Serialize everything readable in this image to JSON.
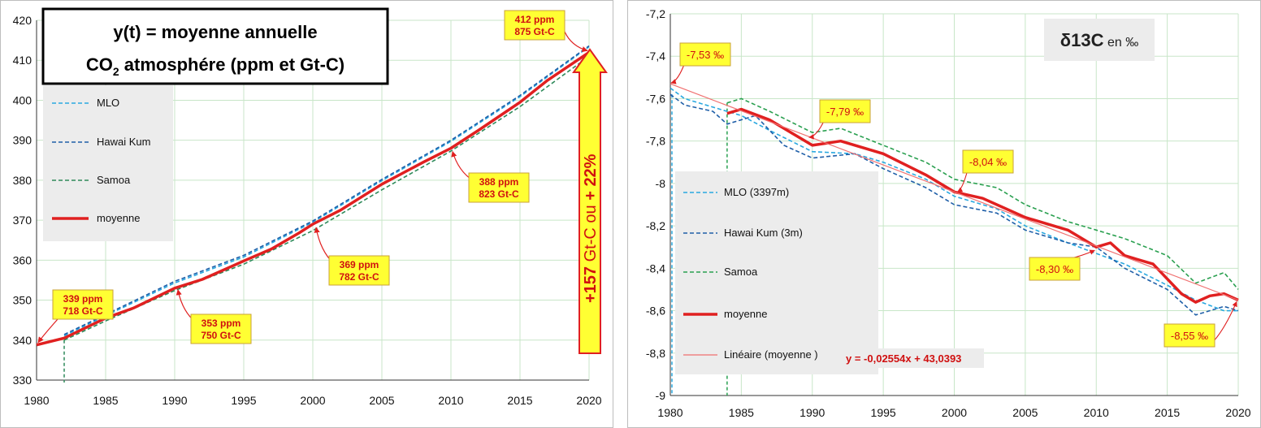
{
  "chart_data": [
    {
      "type": "line",
      "title_lines": [
        "y(t) = moyenne annuelle",
        "CO",
        "2",
        " atmosphére (ppm et Gt-C)"
      ],
      "xlabel": "",
      "ylabel": "",
      "xlim": [
        1980,
        2020
      ],
      "ylim": [
        330,
        420
      ],
      "xticks": [
        "1980",
        "1985",
        "1990",
        "1995",
        "2000",
        "2005",
        "2010",
        "2015",
        "2020"
      ],
      "yticks": [
        "330",
        "340",
        "350",
        "360",
        "370",
        "380",
        "390",
        "400",
        "410",
        "420"
      ],
      "grid": true,
      "legend_position": "left",
      "series": [
        {
          "name": "MLO",
          "color": "#29a8e0",
          "style": "dashed",
          "x": [
            1982,
            1985,
            1990,
            1995,
            2000,
            2005,
            2010,
            2015,
            2020
          ],
          "y": [
            341.1,
            346.1,
            354.3,
            360.8,
            369.5,
            379.9,
            389.7,
            400.9,
            413.4
          ]
        },
        {
          "name": "Hawai Kum",
          "color": "#1f5fa8",
          "style": "dashed",
          "x": [
            1982,
            1985,
            1990,
            1995,
            2000,
            2005,
            2010,
            2015,
            2020
          ],
          "y": [
            341.4,
            346.4,
            354.7,
            361.2,
            369.8,
            380.2,
            390.0,
            401.2,
            413.6
          ]
        },
        {
          "name": "Samoa",
          "color": "#2e8a5a",
          "style": "dashed",
          "x": [
            1982,
            1985,
            1990,
            1995,
            2000,
            2005,
            2010,
            2015,
            2020
          ],
          "y": [
            340.0,
            344.8,
            352.4,
            359.0,
            367.4,
            377.6,
            387.3,
            398.4,
            411.0
          ]
        },
        {
          "name": "moyenne",
          "color": "#e02020",
          "style": "solid",
          "x": [
            1980,
            1982,
            1985,
            1987,
            1990,
            1992,
            1995,
            1997,
            1999,
            2000,
            2002,
            2005,
            2008,
            2010,
            2012,
            2015,
            2017,
            2020
          ],
          "y": [
            338.8,
            340.5,
            345.5,
            348.0,
            353.0,
            355.2,
            359.8,
            362.8,
            366.8,
            369.0,
            372.5,
            379.0,
            384.5,
            388.0,
            392.5,
            399.5,
            405.0,
            412.0
          ]
        }
      ],
      "annotations": [
        {
          "lines": [
            "339 ppm",
            "718 Gt-C"
          ],
          "x": 1980,
          "y": 339
        },
        {
          "lines": [
            "353 ppm",
            "750 Gt-C"
          ],
          "x": 1990,
          "y": 353
        },
        {
          "lines": [
            "369 ppm",
            "782 Gt-C"
          ],
          "x": 2000,
          "y": 369
        },
        {
          "lines": [
            "388 ppm",
            "823 Gt-C"
          ],
          "x": 2010,
          "y": 388
        },
        {
          "lines": [
            "412 ppm",
            "875 Gt-C"
          ],
          "x": 2020,
          "y": 412
        }
      ],
      "arrow_label_parts": [
        "+157",
        " Gt-C ou ",
        "+ 22%"
      ]
    },
    {
      "type": "line",
      "title_parts": [
        "δ13C",
        " en ‰"
      ],
      "xlabel": "",
      "ylabel": "",
      "xlim": [
        1980,
        2020
      ],
      "ylim": [
        -9,
        -7.2
      ],
      "xticks": [
        "1980",
        "1985",
        "1990",
        "1995",
        "2000",
        "2005",
        "2010",
        "2015",
        "2020"
      ],
      "yticks": [
        "-9",
        "-8,8",
        "-8,6",
        "-8,4",
        "-8,2",
        "-8",
        "-7,8",
        "-7,6",
        "-7,4",
        "-7,2"
      ],
      "grid": true,
      "legend_position": "left",
      "series": [
        {
          "name": "MLO (3397m)",
          "color": "#29a8e0",
          "style": "dashed",
          "x": [
            1980,
            1981,
            1983,
            1985,
            1987,
            1990,
            1993,
            1995,
            1998,
            2000,
            2003,
            2005,
            2008,
            2010,
            2012,
            2015,
            2017,
            2019,
            2020
          ],
          "y": [
            -7.55,
            -7.6,
            -7.64,
            -7.68,
            -7.75,
            -7.85,
            -7.86,
            -7.9,
            -7.98,
            -8.06,
            -8.12,
            -8.2,
            -8.28,
            -8.33,
            -8.38,
            -8.48,
            -8.55,
            -8.6,
            -8.6
          ]
        },
        {
          "name": "Hawai Kum (3m)",
          "color": "#1f5fa8",
          "style": "dashed",
          "x": [
            1980,
            1981,
            1983,
            1984,
            1986,
            1988,
            1990,
            1993,
            1995,
            1998,
            2000,
            2003,
            2005,
            2008,
            2010,
            2012,
            2015,
            2017,
            2019,
            2020
          ],
          "y": [
            -7.58,
            -7.63,
            -7.66,
            -7.72,
            -7.68,
            -7.82,
            -7.88,
            -7.86,
            -7.93,
            -8.02,
            -8.1,
            -8.14,
            -8.22,
            -8.28,
            -8.3,
            -8.4,
            -8.5,
            -8.62,
            -8.58,
            -8.6
          ]
        },
        {
          "name": "Samoa",
          "color": "#2aa050",
          "style": "dashed",
          "x": [
            1984,
            1985,
            1987,
            1990,
            1992,
            1995,
            1998,
            2000,
            2003,
            2005,
            2008,
            2010,
            2012,
            2015,
            2017,
            2019,
            2020
          ],
          "y": [
            -7.62,
            -7.6,
            -7.66,
            -7.76,
            -7.74,
            -7.82,
            -7.9,
            -7.98,
            -8.02,
            -8.1,
            -8.18,
            -8.22,
            -8.26,
            -8.34,
            -8.47,
            -8.42,
            -8.5
          ]
        },
        {
          "name": "moyenne",
          "color": "#e02020",
          "style": "solid",
          "x": [
            1984,
            1985,
            1987,
            1990,
            1992,
            1995,
            1998,
            2000,
            2002,
            2005,
            2008,
            2010,
            2011,
            2012,
            2014,
            2016,
            2017,
            2018,
            2019,
            2020
          ],
          "y": [
            -7.67,
            -7.65,
            -7.7,
            -7.82,
            -7.8,
            -7.86,
            -7.96,
            -8.04,
            -8.07,
            -8.16,
            -8.22,
            -8.3,
            -8.28,
            -8.34,
            -8.38,
            -8.52,
            -8.56,
            -8.53,
            -8.52,
            -8.55
          ]
        },
        {
          "name": "Linéaire (moyenne )",
          "color": "#f07070",
          "style": "thin",
          "x": [
            1980,
            2020
          ],
          "y": [
            -7.53,
            -8.55
          ]
        }
      ],
      "trend_equation": "y = -0,02554x + 43,0393",
      "annotations": [
        {
          "text": "-7,53 ‰",
          "x": 1980,
          "y": -7.53
        },
        {
          "text": "-7,79 ‰",
          "x": 1990,
          "y": -7.79
        },
        {
          "text": "-8,04 ‰",
          "x": 2000,
          "y": -8.04
        },
        {
          "text": "-8,30 ‰",
          "x": 2010,
          "y": -8.3
        },
        {
          "text": "-8,55 ‰",
          "x": 2020,
          "y": -8.55
        }
      ]
    }
  ]
}
